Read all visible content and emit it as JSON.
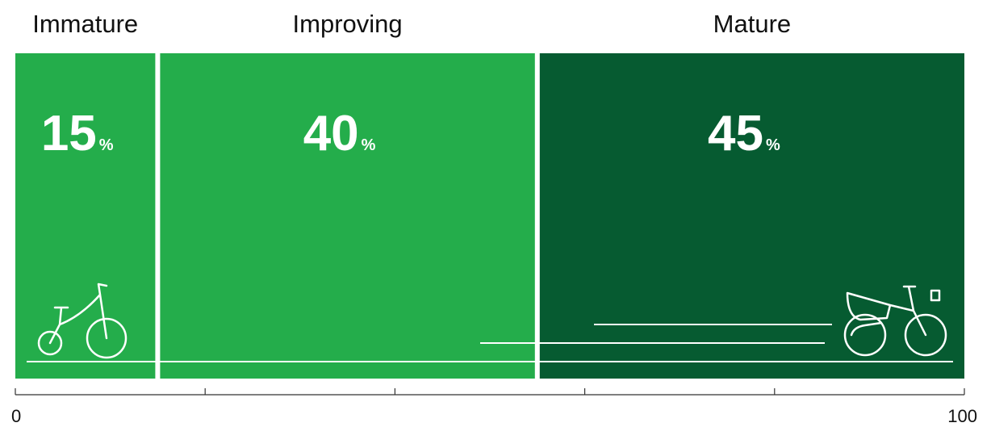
{
  "chart_data": {
    "type": "bar",
    "orientation": "horizontal-stacked",
    "categories": [
      "Immature",
      "Improving",
      "Mature"
    ],
    "values": [
      15,
      40,
      45
    ],
    "value_suffix": "%",
    "colors": [
      "#24ad4b",
      "#24ad4b",
      "#065b31"
    ],
    "icons": [
      "tricycle-icon",
      "",
      "motorbike-icon"
    ],
    "xlim": [
      0,
      100
    ],
    "xtick_labels": [
      "0",
      "100"
    ],
    "xtick_count": 6
  }
}
